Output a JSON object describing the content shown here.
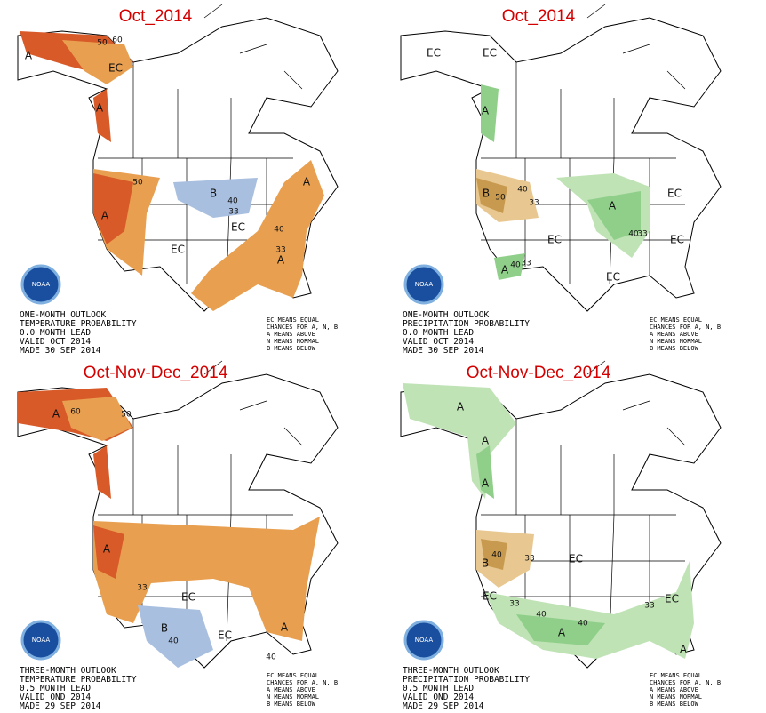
{
  "logo_text": "NOAA",
  "panels": [
    {
      "title": "Oct_2014",
      "outlook": [
        "ONE-MONTH OUTLOOK",
        "TEMPERATURE PROBABILITY",
        "0.0 MONTH LEAD",
        "VALID OCT 2014",
        "MADE 30 SEP 2014"
      ],
      "legend": [
        "EC MEANS EQUAL",
        "CHANCES FOR A, N, B",
        "A MEANS ABOVE",
        "N MEANS NORMAL",
        "B MEANS BELOW"
      ],
      "labels": [
        "A",
        "50",
        "60",
        "EC",
        "A",
        "50",
        "A",
        "B",
        "40",
        "33",
        "EC",
        "EC",
        "40",
        "33",
        "A",
        "A"
      ]
    },
    {
      "title": "Oct_2014",
      "outlook": [
        "ONE-MONTH OUTLOOK",
        "PRECIPITATION PROBABILITY",
        "0.0 MONTH LEAD",
        "VALID OCT 2014",
        "MADE 30 SEP 2014"
      ],
      "legend": [
        "EC MEANS EQUAL",
        "CHANCES FOR A, N, B",
        "A MEANS ABOVE",
        "N MEANS NORMAL",
        "B MEANS BELOW"
      ],
      "labels": [
        "EC",
        "EC",
        "A",
        "B",
        "50",
        "40",
        "33",
        "EC",
        "A",
        "40",
        "33",
        "EC",
        "EC",
        "EC",
        "A",
        "40",
        "33"
      ]
    },
    {
      "title": "Oct-Nov-Dec_2014",
      "outlook": [
        "THREE-MONTH OUTLOOK",
        "TEMPERATURE PROBABILITY",
        "0.5 MONTH LEAD",
        "VALID OND 2014",
        "MADE 29 SEP 2014"
      ],
      "legend": [
        "EC MEANS EQUAL",
        "CHANCES FOR A, N, B",
        "A MEANS ABOVE",
        "N MEANS NORMAL",
        "B MEANS BELOW"
      ],
      "labels": [
        "A",
        "60",
        "50",
        "A",
        "33",
        "EC",
        "B",
        "40",
        "EC",
        "40",
        "A"
      ]
    },
    {
      "title": "Oct-Nov-Dec_2014",
      "outlook": [
        "THREE-MONTH OUTLOOK",
        "PRECIPITATION PROBABILITY",
        "0.5 MONTH LEAD",
        "VALID OND 2014",
        "MADE 29 SEP 2014"
      ],
      "legend": [
        "EC MEANS EQUAL",
        "CHANCES FOR A, N, B",
        "A MEANS ABOVE",
        "N MEANS NORMAL",
        "B MEANS BELOW"
      ],
      "labels": [
        "A",
        "A",
        "A",
        "40",
        "33",
        "B",
        "EC",
        "EC",
        "33",
        "40",
        "A",
        "40",
        "33",
        "EC",
        "A"
      ]
    }
  ]
}
